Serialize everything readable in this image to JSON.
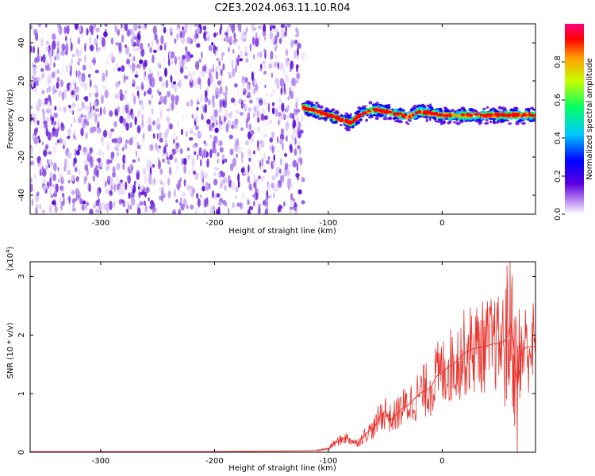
{
  "title": "C2E3.2024.063.11.10.R04",
  "chart_data": [
    {
      "type": "heatmap",
      "xlabel": "Height of straight line (km)",
      "ylabel": "Frequency (Hz)",
      "xlim": [
        -362,
        82
      ],
      "ylim": [
        -50,
        50
      ],
      "x_ticks": [
        -300,
        -200,
        -100,
        0
      ],
      "y_ticks": [
        -40,
        -20,
        0,
        20,
        40
      ],
      "colorbar": {
        "label": "Normalized spectral amplitude",
        "range": [
          0,
          1
        ],
        "ticks": [
          "0.0",
          "0.2",
          "0.4",
          "0.6",
          "0.8"
        ],
        "colors": [
          "#ffffff",
          "#b07cf0",
          "#5b00e0",
          "#0000ff",
          "#00c8ff",
          "#00ff66",
          "#c8ff00",
          "#ffa000",
          "#ff0000",
          "#ff0080"
        ]
      },
      "noise_region_x": [
        -362,
        -122
      ],
      "signal_ridge": [
        {
          "x": -122,
          "y": 6
        },
        {
          "x": -110,
          "y": 4
        },
        {
          "x": -100,
          "y": 2
        },
        {
          "x": -90,
          "y": 0
        },
        {
          "x": -80,
          "y": -2
        },
        {
          "x": -72,
          "y": 2
        },
        {
          "x": -60,
          "y": 5
        },
        {
          "x": -50,
          "y": 4
        },
        {
          "x": -40,
          "y": 3
        },
        {
          "x": -30,
          "y": 1
        },
        {
          "x": -20,
          "y": 4
        },
        {
          "x": -10,
          "y": 3
        },
        {
          "x": 0,
          "y": 2
        },
        {
          "x": 20,
          "y": 2
        },
        {
          "x": 40,
          "y": 2
        },
        {
          "x": 60,
          "y": 2
        },
        {
          "x": 70,
          "y": 2
        },
        {
          "x": 82,
          "y": 2
        }
      ]
    },
    {
      "type": "line",
      "xlabel": "Height of straight line (km)",
      "ylabel": "SNR (10 * v/v)",
      "yscale_label": "(x10",
      "yscale_exp": "4",
      "yscale_close": ")",
      "xlim": [
        -362,
        82
      ],
      "ylim": [
        0,
        3.25
      ],
      "x_ticks": [
        -300,
        -200,
        -100,
        0
      ],
      "y_ticks": [
        0,
        1,
        2,
        3
      ],
      "series": [
        {
          "color": "#e8322d",
          "x": [
            -362,
            -300,
            -200,
            -130,
            -110,
            -100,
            -95,
            -90,
            -85,
            -80,
            -75,
            -70,
            -65,
            -60,
            -55,
            -50,
            -45,
            -40,
            -35,
            -30,
            -25,
            -20,
            -15,
            -10,
            -5,
            0,
            5,
            10,
            15,
            20,
            25,
            30,
            35,
            40,
            45,
            50,
            55,
            58,
            60,
            62,
            64,
            66,
            70,
            75,
            82
          ],
          "y": [
            0.01,
            0.01,
            0.01,
            0.02,
            0.03,
            0.06,
            0.15,
            0.2,
            0.25,
            0.2,
            0.15,
            0.25,
            0.35,
            0.4,
            0.6,
            0.7,
            0.55,
            0.65,
            0.75,
            0.8,
            0.9,
            1.0,
            1.05,
            1.1,
            1.3,
            1.35,
            1.45,
            1.5,
            1.6,
            1.7,
            1.75,
            1.78,
            1.8,
            1.82,
            1.85,
            1.85,
            1.9,
            2.0,
            2.2,
            2.0,
            1.5,
            1.1,
            1.75,
            1.8,
            1.8
          ]
        }
      ]
    }
  ]
}
